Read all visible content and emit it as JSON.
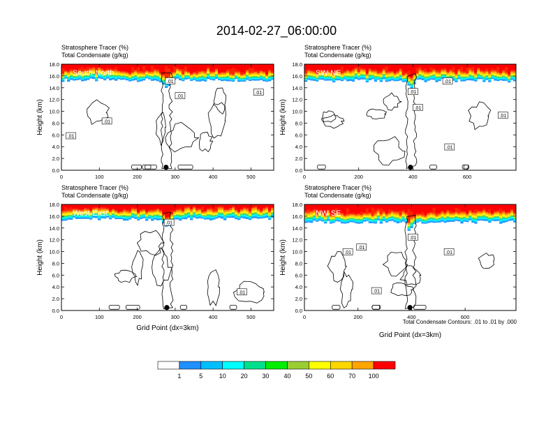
{
  "title": "2014-02-27_06:00:00",
  "colors": {
    "levels": [
      "#ffffff",
      "#1e90ff",
      "#00bfff",
      "#00ffff",
      "#00e08c",
      "#00ee00",
      "#9acd32",
      "#ffff00",
      "#ffd700",
      "#ffa500",
      "#ff6a00",
      "#ff2400",
      "#ff0000"
    ],
    "contour": "#000000",
    "marker": "#000000"
  },
  "colorbar": {
    "labels": [
      "1",
      "5",
      "10",
      "20",
      "30",
      "40",
      "50",
      "60",
      "70",
      "100"
    ]
  },
  "footnote": "Total Condensate Contours: .01 to .01 by .000",
  "chart_data": [
    {
      "type": "heatmap",
      "subtitle": [
        "Stratosphere Tracer   (%)",
        "Total Condensate   (g/kg)"
      ],
      "panel_label": "South-North",
      "xlabel": "",
      "ylabel": "Height (km)",
      "xlim": [
        0,
        560
      ],
      "ylim": [
        0,
        18
      ],
      "xticks": [
        0,
        100,
        200,
        300,
        400,
        500
      ],
      "yticks": [
        "0.0",
        "2.0",
        "4.0",
        "6.0",
        "8.0",
        "10.0",
        "12.0",
        "14.0",
        "16.0",
        "18.0"
      ],
      "tropopause_km": 15.3,
      "marker_x": 276,
      "contour_labels": [
        {
          "text": ".01",
          "x": 287,
          "y": 15.1
        },
        {
          "text": ".01",
          "x": 313,
          "y": 12.6
        },
        {
          "text": ".01",
          "x": 520,
          "y": 13.2
        },
        {
          "text": ".01",
          "x": 120,
          "y": 8.3
        },
        {
          "text": ".01",
          "x": 25,
          "y": 5.8
        }
      ]
    },
    {
      "type": "heatmap",
      "subtitle": [
        "Stratosphere Tracer   (%)",
        "Total Condensate   (g/kg)"
      ],
      "panel_label": "SW-NE",
      "xlabel": "",
      "ylabel": "Height (km)",
      "xlim": [
        0,
        780
      ],
      "ylim": [
        0,
        18
      ],
      "xticks": [
        0,
        200,
        400,
        600
      ],
      "yticks": [
        "0.0",
        "2.0",
        "4.0",
        "6.0",
        "8.0",
        "10.0",
        "12.0",
        "14.0",
        "16.0",
        "18.0"
      ],
      "tropopause_km": 15.2,
      "marker_x": 391,
      "contour_labels": [
        {
          "text": ".01",
          "x": 528,
          "y": 15.1
        },
        {
          "text": ".01",
          "x": 400,
          "y": 13.3
        },
        {
          "text": ".01",
          "x": 418,
          "y": 10.6
        },
        {
          "text": ".01",
          "x": 732,
          "y": 9.3
        },
        {
          "text": ".01",
          "x": 535,
          "y": 3.9
        }
      ]
    },
    {
      "type": "heatmap",
      "subtitle": [
        "Stratosphere Tracer   (%)",
        "Total Condensate   (g/kg)"
      ],
      "panel_label": "West-East",
      "xlabel": "Grid Point (dx=3km)",
      "ylabel": "Height (km)",
      "xlim": [
        0,
        560
      ],
      "ylim": [
        0,
        18
      ],
      "xticks": [
        0,
        100,
        200,
        300,
        400,
        500
      ],
      "yticks": [
        "0.0",
        "2.0",
        "4.0",
        "6.0",
        "8.0",
        "10.0",
        "12.0",
        "14.0",
        "16.0",
        "18.0"
      ],
      "tropopause_km": 15.5,
      "marker_x": 278,
      "contour_labels": [
        {
          "text": ".01",
          "x": 284,
          "y": 14.9
        },
        {
          "text": ".01",
          "x": 476,
          "y": 3.1
        }
      ]
    },
    {
      "type": "heatmap",
      "subtitle": [
        "Stratosphere Tracer   (%)",
        "Total Condensate   (g/kg)"
      ],
      "panel_label": "NW-SE",
      "xlabel": "Grid Point (dx=3km)",
      "ylabel": "Height (km)",
      "xlim": [
        0,
        790
      ],
      "ylim": [
        0,
        18
      ],
      "xticks": [
        0,
        200,
        400,
        600
      ],
      "yticks": [
        "0.0",
        "2.0",
        "4.0",
        "6.0",
        "8.0",
        "10.0",
        "12.0",
        "14.0",
        "16.0",
        "18.0"
      ],
      "tropopause_km": 15.0,
      "marker_x": 394,
      "contour_labels": [
        {
          "text": ".01",
          "x": 213,
          "y": 10.7
        },
        {
          "text": ".01",
          "x": 162,
          "y": 9.9
        },
        {
          "text": ".01",
          "x": 405,
          "y": 12.4
        },
        {
          "text": ".01",
          "x": 540,
          "y": 9.9
        },
        {
          "text": ".01",
          "x": 269,
          "y": 3.3
        }
      ]
    }
  ]
}
